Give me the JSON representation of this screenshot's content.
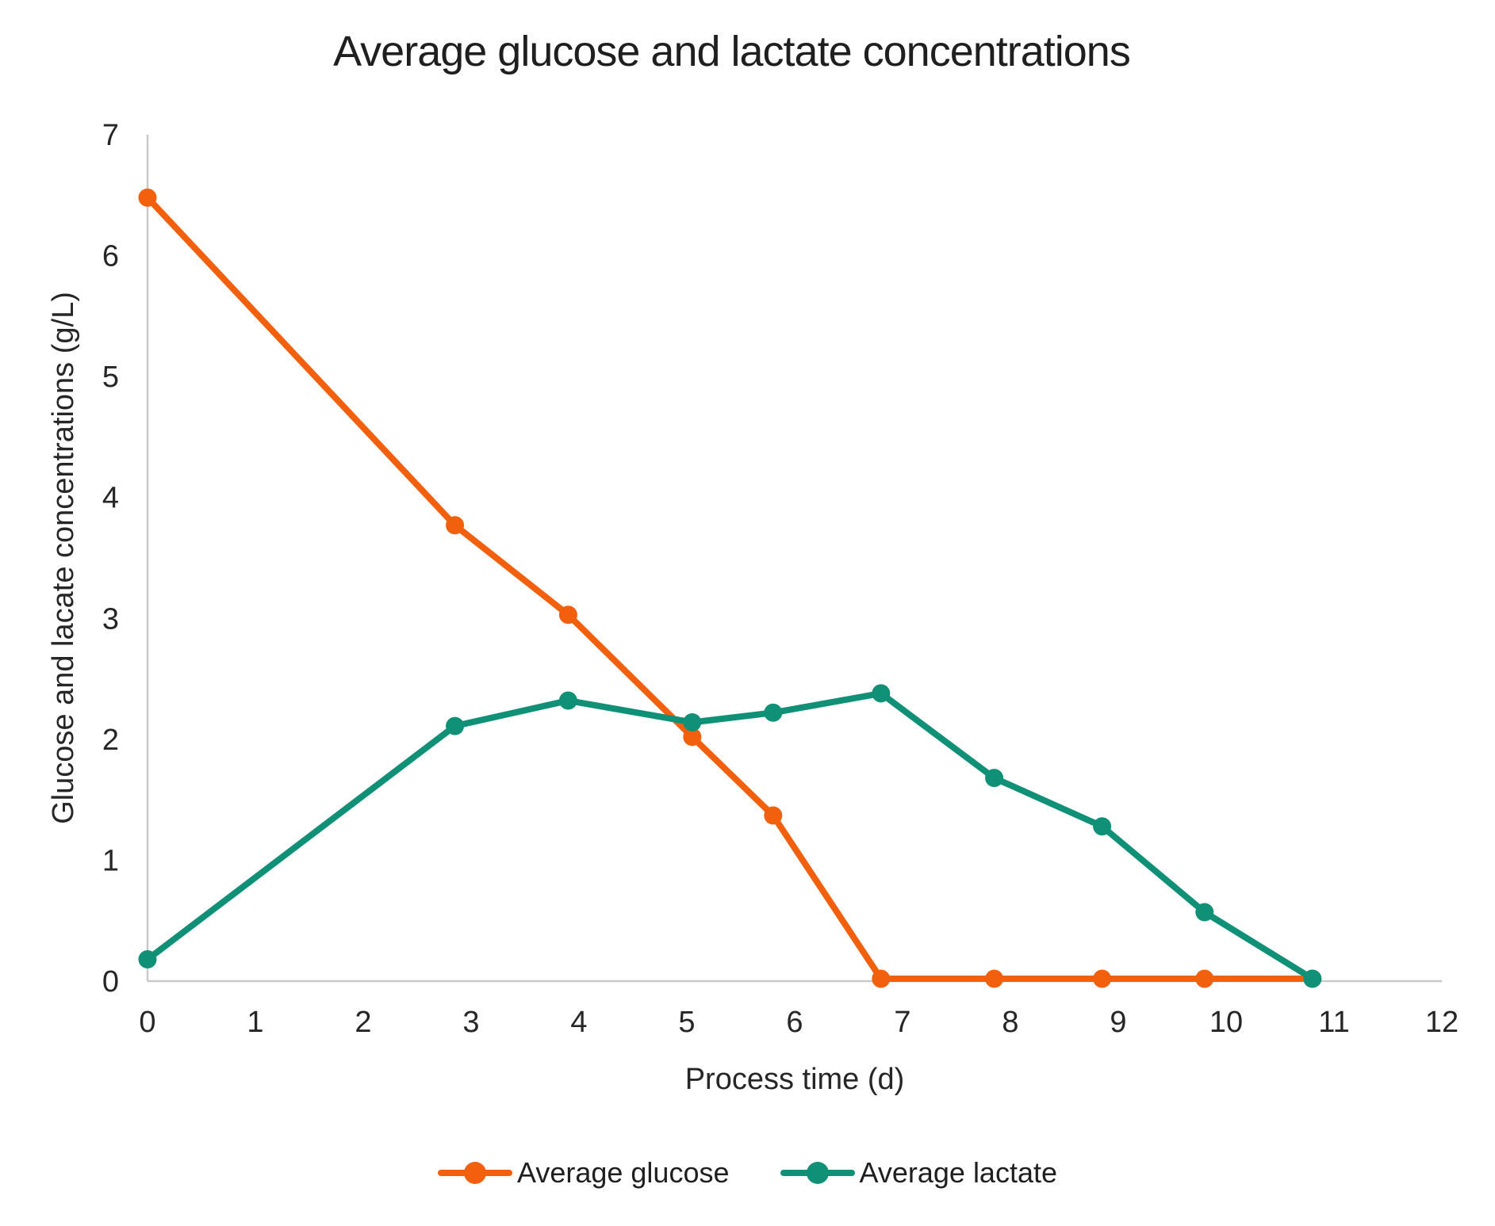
{
  "page": {
    "background": "#ffffff"
  },
  "chart_data": {
    "type": "line",
    "title": "Average glucose and lactate concentrations",
    "xlabel": "Process time (d)",
    "ylabel": "Glucose and lacate concentrations (g/L)",
    "xlim": [
      0,
      12
    ],
    "ylim": [
      0,
      7
    ],
    "xticks": [
      0,
      1,
      2,
      3,
      4,
      5,
      6,
      7,
      8,
      9,
      10,
      11,
      12
    ],
    "yticks": [
      0,
      1,
      2,
      3,
      4,
      5,
      6,
      7
    ],
    "grid": false,
    "legend_position": "bottom",
    "axis_color": "#C9C9C9",
    "text_color": "#262626",
    "x": [
      0,
      2.85,
      3.9,
      5.05,
      5.8,
      6.8,
      7.85,
      8.85,
      9.8,
      10.8
    ],
    "series": [
      {
        "name": "Average glucose",
        "color": "#F2600D",
        "marker": "circle",
        "values": [
          6.48,
          3.77,
          3.03,
          2.02,
          1.37,
          0.02,
          0.02,
          0.02,
          0.02,
          0.02
        ]
      },
      {
        "name": "Average lactate",
        "color": "#0F9077",
        "marker": "circle",
        "values": [
          0.18,
          2.11,
          2.32,
          2.14,
          2.22,
          2.38,
          1.68,
          1.28,
          0.57,
          0.02
        ]
      }
    ]
  }
}
